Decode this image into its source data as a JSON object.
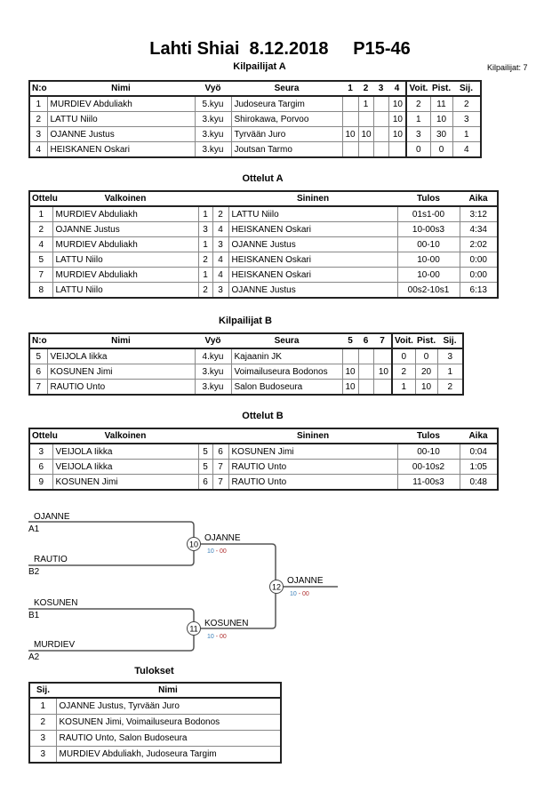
{
  "title": "Lahti Shiai  8.12.2018     P15-46",
  "competitor_count": "Kilpailijat: 7",
  "pool_a": {
    "heading": "Kilpailijat A",
    "columns": [
      "N:o",
      "Nimi",
      "Vyö",
      "Seura",
      "1",
      "2",
      "3",
      "4",
      "Voit.",
      "Pist.",
      "Sij."
    ],
    "rows": [
      [
        "1",
        "MURDIEV Abduliakh",
        "5.kyu",
        "Judoseura Targim",
        "",
        "1",
        "",
        "10",
        "2",
        "11",
        "2"
      ],
      [
        "2",
        "LATTU Niilo",
        "3.kyu",
        "Shirokawa, Porvoo",
        "",
        "",
        "",
        "10",
        "1",
        "10",
        "3"
      ],
      [
        "3",
        "OJANNE Justus",
        "3.kyu",
        "Tyrvään Juro",
        "10",
        "10",
        "",
        "10",
        "3",
        "30",
        "1"
      ],
      [
        "4",
        "HEISKANEN Oskari",
        "3.kyu",
        "Joutsan Tarmo",
        "",
        "",
        "",
        "",
        "0",
        "0",
        "4"
      ]
    ]
  },
  "matches_a": {
    "heading": "Ottelut A",
    "columns": [
      "Ottelu",
      "Valkoinen",
      "",
      "",
      "Sininen",
      "Tulos",
      "Aika"
    ],
    "rows": [
      [
        "1",
        "MURDIEV Abduliakh",
        "1",
        "2",
        "LATTU Niilo",
        "01s1-00",
        "3:12"
      ],
      [
        "2",
        "OJANNE Justus",
        "3",
        "4",
        "HEISKANEN Oskari",
        "10-00s3",
        "4:34"
      ],
      [
        "4",
        "MURDIEV Abduliakh",
        "1",
        "3",
        "OJANNE Justus",
        "00-10",
        "2:02"
      ],
      [
        "5",
        "LATTU Niilo",
        "2",
        "4",
        "HEISKANEN Oskari",
        "10-00",
        "0:00"
      ],
      [
        "7",
        "MURDIEV Abduliakh",
        "1",
        "4",
        "HEISKANEN Oskari",
        "10-00",
        "0:00"
      ],
      [
        "8",
        "LATTU Niilo",
        "2",
        "3",
        "OJANNE Justus",
        "00s2-10s1",
        "6:13"
      ]
    ]
  },
  "pool_b": {
    "heading": "Kilpailijat B",
    "columns": [
      "N:o",
      "Nimi",
      "Vyö",
      "Seura",
      "5",
      "6",
      "7",
      "Voit.",
      "Pist.",
      "Sij."
    ],
    "rows": [
      [
        "5",
        "VEIJOLA Iikka",
        "4.kyu",
        "Kajaanin JK",
        "",
        "",
        "",
        "0",
        "0",
        "3"
      ],
      [
        "6",
        "KOSUNEN Jimi",
        "3.kyu",
        "Voimailuseura Bodonos",
        "10",
        "",
        "10",
        "2",
        "20",
        "1"
      ],
      [
        "7",
        "RAUTIO Unto",
        "3.kyu",
        "Salon Budoseura",
        "10",
        "",
        "",
        "1",
        "10",
        "2"
      ]
    ]
  },
  "matches_b": {
    "heading": "Ottelut B",
    "columns": [
      "Ottelu",
      "Valkoinen",
      "",
      "",
      "Sininen",
      "Tulos",
      "Aika"
    ],
    "rows": [
      [
        "3",
        "VEIJOLA Iikka",
        "5",
        "6",
        "KOSUNEN Jimi",
        "00-10",
        "0:04"
      ],
      [
        "6",
        "VEIJOLA Iikka",
        "5",
        "7",
        "RAUTIO Unto",
        "00-10s2",
        "1:05"
      ],
      [
        "9",
        "KOSUNEN Jimi",
        "6",
        "7",
        "RAUTIO Unto",
        "11-00s3",
        "0:48"
      ]
    ]
  },
  "bracket": {
    "entries": [
      {
        "name": "OJANNE",
        "seed": "A1"
      },
      {
        "name": "RAUTIO",
        "seed": "B2"
      },
      {
        "name": "KOSUNEN",
        "seed": "B1"
      },
      {
        "name": "MURDIEV",
        "seed": "A2"
      }
    ],
    "matches": [
      {
        "number": "10",
        "winner": "OJANNE",
        "score_a": "10",
        "score_b": "00"
      },
      {
        "number": "11",
        "winner": "KOSUNEN",
        "score_a": "10",
        "score_b": "00"
      },
      {
        "number": "12",
        "winner": "OJANNE",
        "score_a": "10",
        "score_b": "00"
      }
    ],
    "colors": {
      "score_a": "#3a7fb8",
      "score_b": "#b03030"
    }
  },
  "results": {
    "heading": "Tulokset",
    "columns": [
      "Sij.",
      "Nimi"
    ],
    "rows": [
      [
        "1",
        "OJANNE Justus, Tyrvään Juro"
      ],
      [
        "2",
        "KOSUNEN Jimi, Voimailuseura Bodonos"
      ],
      [
        "3",
        "RAUTIO Unto, Salon Budoseura"
      ],
      [
        "3",
        "MURDIEV Abduliakh, Judoseura Targim"
      ]
    ]
  }
}
